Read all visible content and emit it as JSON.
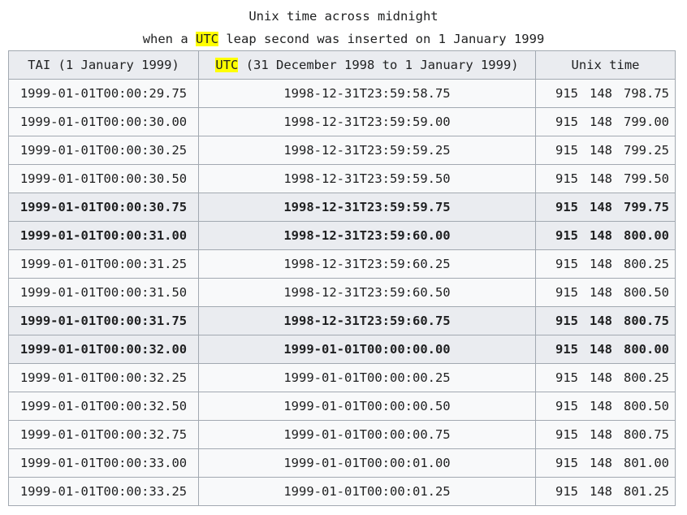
{
  "caption": {
    "line1": "Unix time across midnight",
    "line2_pre": "when a ",
    "line2_hl": "UTC",
    "line2_post": " leap second was inserted on 1 January 1999"
  },
  "headers": {
    "tai": "TAI (1 January 1999)",
    "utc_hl": "UTC",
    "utc_rest": " (31 December 1998 to 1 January 1999)",
    "unix": "Unix time"
  },
  "rows": [
    {
      "tai": "1999-01-01T00:00:29.75",
      "utc": "1998-12-31T23:59:58.75",
      "unix_a": "915",
      "unix_b": "148",
      "unix_c": "798.75",
      "bold": false
    },
    {
      "tai": "1999-01-01T00:00:30.00",
      "utc": "1998-12-31T23:59:59.00",
      "unix_a": "915",
      "unix_b": "148",
      "unix_c": "799.00",
      "bold": false
    },
    {
      "tai": "1999-01-01T00:00:30.25",
      "utc": "1998-12-31T23:59:59.25",
      "unix_a": "915",
      "unix_b": "148",
      "unix_c": "799.25",
      "bold": false
    },
    {
      "tai": "1999-01-01T00:00:30.50",
      "utc": "1998-12-31T23:59:59.50",
      "unix_a": "915",
      "unix_b": "148",
      "unix_c": "799.50",
      "bold": false
    },
    {
      "tai": "1999-01-01T00:00:30.75",
      "utc": "1998-12-31T23:59:59.75",
      "unix_a": "915",
      "unix_b": "148",
      "unix_c": "799.75",
      "bold": true
    },
    {
      "tai": "1999-01-01T00:00:31.00",
      "utc": "1998-12-31T23:59:60.00",
      "unix_a": "915",
      "unix_b": "148",
      "unix_c": "800.00",
      "bold": true
    },
    {
      "tai": "1999-01-01T00:00:31.25",
      "utc": "1998-12-31T23:59:60.25",
      "unix_a": "915",
      "unix_b": "148",
      "unix_c": "800.25",
      "bold": false
    },
    {
      "tai": "1999-01-01T00:00:31.50",
      "utc": "1998-12-31T23:59:60.50",
      "unix_a": "915",
      "unix_b": "148",
      "unix_c": "800.50",
      "bold": false
    },
    {
      "tai": "1999-01-01T00:00:31.75",
      "utc": "1998-12-31T23:59:60.75",
      "unix_a": "915",
      "unix_b": "148",
      "unix_c": "800.75",
      "bold": true
    },
    {
      "tai": "1999-01-01T00:00:32.00",
      "utc": "1999-01-01T00:00:00.00",
      "unix_a": "915",
      "unix_b": "148",
      "unix_c": "800.00",
      "bold": true
    },
    {
      "tai": "1999-01-01T00:00:32.25",
      "utc": "1999-01-01T00:00:00.25",
      "unix_a": "915",
      "unix_b": "148",
      "unix_c": "800.25",
      "bold": false
    },
    {
      "tai": "1999-01-01T00:00:32.50",
      "utc": "1999-01-01T00:00:00.50",
      "unix_a": "915",
      "unix_b": "148",
      "unix_c": "800.50",
      "bold": false
    },
    {
      "tai": "1999-01-01T00:00:32.75",
      "utc": "1999-01-01T00:00:00.75",
      "unix_a": "915",
      "unix_b": "148",
      "unix_c": "800.75",
      "bold": false
    },
    {
      "tai": "1999-01-01T00:00:33.00",
      "utc": "1999-01-01T00:00:01.00",
      "unix_a": "915",
      "unix_b": "148",
      "unix_c": "801.00",
      "bold": false
    },
    {
      "tai": "1999-01-01T00:00:33.25",
      "utc": "1999-01-01T00:00:01.25",
      "unix_a": "915",
      "unix_b": "148",
      "unix_c": "801.25",
      "bold": false
    }
  ],
  "colors": {
    "highlight": "#ffff00",
    "header_bg": "#eaecf0",
    "cell_bg": "#f8f9fa",
    "border": "#a2a9b1"
  }
}
